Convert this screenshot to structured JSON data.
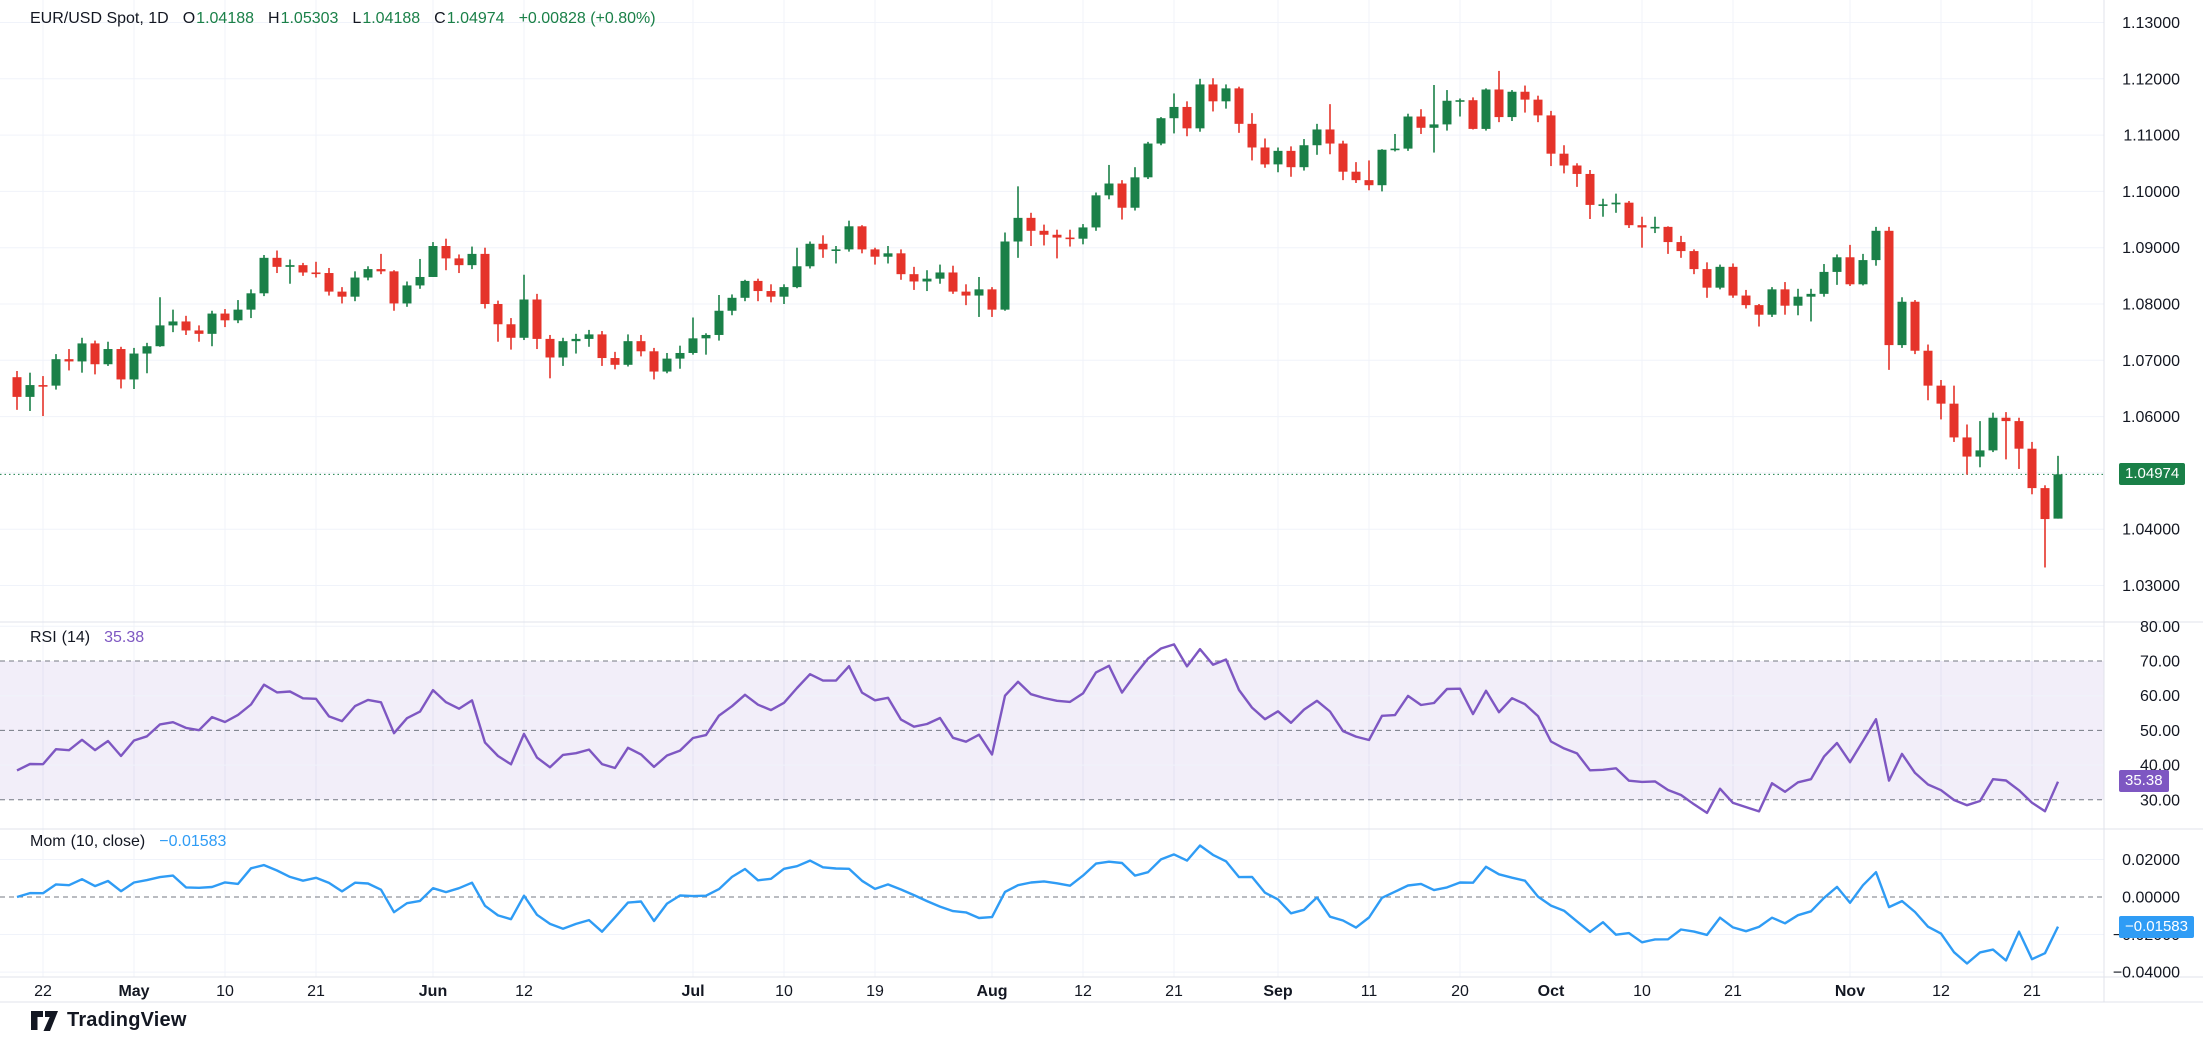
{
  "header": {
    "symbol": "EUR/USD Spot, 1D",
    "o_label": "O",
    "o": "1.04188",
    "h_label": "H",
    "h": "1.05303",
    "l_label": "L",
    "l": "1.04188",
    "c_label": "C",
    "c": "1.04974",
    "change": "+0.00828 (+0.80%)"
  },
  "rsi_header": {
    "name": "RSI",
    "params": "(14)",
    "value": "35.38"
  },
  "mom_header": {
    "name": "Mom",
    "params": "(10, close)",
    "value": "−0.01583"
  },
  "badges": {
    "price": "1.04974",
    "rsi": "35.38",
    "mom": "−0.01583"
  },
  "footer": {
    "brand": "TradingView"
  },
  "colors": {
    "up": "#1a8048",
    "down": "#e5332a",
    "rsi_line": "#7e57c2",
    "rsi_band": "rgba(126,87,194,0.10)",
    "mom_line": "#2f9cf5",
    "grid": "#f0f3fa",
    "dashed": "#757983",
    "separator": "#e0e3eb",
    "text": "#131722",
    "last_close_line": "#1a8048"
  },
  "chart_data": {
    "type": "candlestick+indicators",
    "symbol": "EUR/USD Spot",
    "interval": "1D",
    "price_axis": {
      "min": 1.03,
      "max": 1.13,
      "labels": [
        {
          "t": "1.13000",
          "v": 1.13
        },
        {
          "t": "1.12000",
          "v": 1.12
        },
        {
          "t": "1.11000",
          "v": 1.11
        },
        {
          "t": "1.10000",
          "v": 1.1
        },
        {
          "t": "1.09000",
          "v": 1.09
        },
        {
          "t": "1.08000",
          "v": 1.08
        },
        {
          "t": "1.07000",
          "v": 1.07
        },
        {
          "t": "1.06000",
          "v": 1.06
        },
        {
          "t": "1.04000",
          "v": 1.04
        },
        {
          "t": "1.03000",
          "v": 1.03
        }
      ]
    },
    "rsi_axis": {
      "labels": [
        {
          "t": "80.00",
          "v": 80
        },
        {
          "t": "70.00",
          "v": 70
        },
        {
          "t": "60.00",
          "v": 60
        },
        {
          "t": "50.00",
          "v": 50
        },
        {
          "t": "40.00",
          "v": 40
        },
        {
          "t": "30.00",
          "v": 30
        }
      ],
      "dashed_levels": [
        70,
        50,
        30
      ],
      "faint_levels": [
        80,
        60,
        40
      ],
      "band": [
        30,
        70
      ],
      "period": 14
    },
    "mom_axis": {
      "labels": [
        {
          "t": "0.02000",
          "v": 0.02
        },
        {
          "t": "0.00000",
          "v": 0
        },
        {
          "t": "−0.02000",
          "v": -0.02
        },
        {
          "t": "−0.04000",
          "v": -0.04
        }
      ],
      "dashed_levels": [
        0
      ],
      "faint_levels": [
        0.02,
        -0.02,
        -0.04
      ],
      "period": 10
    },
    "time_ticks": [
      {
        "i": 2,
        "t": "22"
      },
      {
        "i": 9,
        "t": "May",
        "b": 1
      },
      {
        "i": 16,
        "t": "10"
      },
      {
        "i": 23,
        "t": "21"
      },
      {
        "i": 32,
        "t": "Jun",
        "b": 1
      },
      {
        "i": 39,
        "t": "12"
      },
      {
        "i": 52,
        "t": "Jul",
        "b": 1
      },
      {
        "i": 59,
        "t": "10"
      },
      {
        "i": 66,
        "t": "19"
      },
      {
        "i": 75,
        "t": "Aug",
        "b": 1
      },
      {
        "i": 82,
        "t": "12"
      },
      {
        "i": 89,
        "t": "21"
      },
      {
        "i": 97,
        "t": "Sep",
        "b": 1
      },
      {
        "i": 104,
        "t": "11"
      },
      {
        "i": 111,
        "t": "20"
      },
      {
        "i": 118,
        "t": "Oct",
        "b": 1
      },
      {
        "i": 125,
        "t": "10"
      },
      {
        "i": 132,
        "t": "21"
      },
      {
        "i": 141,
        "t": "Nov",
        "b": 1
      },
      {
        "i": 148,
        "t": "12"
      },
      {
        "i": 155,
        "t": "21"
      }
    ],
    "last_close": 1.04974,
    "candles": [
      [
        1.067,
        1.0681,
        1.0612,
        1.0635
      ],
      [
        1.0635,
        1.0678,
        1.061,
        1.0656
      ],
      [
        1.0656,
        1.0672,
        1.0601,
        1.0655
      ],
      [
        1.0655,
        1.0711,
        1.0648,
        1.0702
      ],
      [
        1.0702,
        1.072,
        1.0682,
        1.0698
      ],
      [
        1.0698,
        1.074,
        1.0678,
        1.073
      ],
      [
        1.073,
        1.0735,
        1.0675,
        1.0693
      ],
      [
        1.0693,
        1.0733,
        1.069,
        1.072
      ],
      [
        1.072,
        1.0724,
        1.065,
        1.0666
      ],
      [
        1.0666,
        1.0722,
        1.0649,
        1.0712
      ],
      [
        1.0712,
        1.0731,
        1.0677,
        1.0725
      ],
      [
        1.0725,
        1.0812,
        1.0724,
        1.0762
      ],
      [
        1.0762,
        1.079,
        1.075,
        1.0769
      ],
      [
        1.0769,
        1.0779,
        1.0745,
        1.0753
      ],
      [
        1.0753,
        1.0762,
        1.0733,
        1.0747
      ],
      [
        1.0747,
        1.0788,
        1.0725,
        1.0783
      ],
      [
        1.0783,
        1.0791,
        1.0759,
        1.0771
      ],
      [
        1.0771,
        1.0807,
        1.0766,
        1.079
      ],
      [
        1.079,
        1.0826,
        1.0775,
        1.0819
      ],
      [
        1.0819,
        1.0887,
        1.0814,
        1.0882
      ],
      [
        1.0882,
        1.0895,
        1.0855,
        1.0866
      ],
      [
        1.0866,
        1.0879,
        1.0836,
        1.0869
      ],
      [
        1.0869,
        1.0873,
        1.085,
        1.0856
      ],
      [
        1.0856,
        1.0875,
        1.0847,
        1.0855
      ],
      [
        1.0855,
        1.0864,
        1.0815,
        1.0822
      ],
      [
        1.0822,
        1.083,
        1.0801,
        1.0813
      ],
      [
        1.0813,
        1.0858,
        1.0805,
        1.0847
      ],
      [
        1.0847,
        1.0867,
        1.0842,
        1.0862
      ],
      [
        1.0862,
        1.0889,
        1.0853,
        1.0858
      ],
      [
        1.0858,
        1.086,
        1.0788,
        1.0801
      ],
      [
        1.0801,
        1.084,
        1.0795,
        1.0833
      ],
      [
        1.0833,
        1.088,
        1.0827,
        1.0848
      ],
      [
        1.0848,
        1.091,
        1.0848,
        1.0903
      ],
      [
        1.0903,
        1.0916,
        1.086,
        1.0881
      ],
      [
        1.0881,
        1.0888,
        1.0855,
        1.0869
      ],
      [
        1.0869,
        1.0902,
        1.0862,
        1.0889
      ],
      [
        1.0889,
        1.09,
        1.0792,
        1.08
      ],
      [
        1.08,
        1.0806,
        1.0733,
        1.0764
      ],
      [
        1.0764,
        1.0775,
        1.0719,
        1.074
      ],
      [
        1.074,
        1.0852,
        1.0736,
        1.0808
      ],
      [
        1.0808,
        1.0818,
        1.072,
        1.0738
      ],
      [
        1.0738,
        1.0745,
        1.0668,
        1.0705
      ],
      [
        1.0705,
        1.074,
        1.069,
        1.0734
      ],
      [
        1.0734,
        1.0747,
        1.0712,
        1.0738
      ],
      [
        1.0738,
        1.0754,
        1.0724,
        1.0746
      ],
      [
        1.0746,
        1.0752,
        1.069,
        1.0704
      ],
      [
        1.0704,
        1.0715,
        1.0684,
        1.0692
      ],
      [
        1.0692,
        1.0746,
        1.0689,
        1.0734
      ],
      [
        1.0734,
        1.0745,
        1.0707,
        1.0716
      ],
      [
        1.0716,
        1.0722,
        1.0666,
        1.068
      ],
      [
        1.068,
        1.0713,
        1.0677,
        1.0703
      ],
      [
        1.0703,
        1.0726,
        1.0685,
        1.0713
      ],
      [
        1.0713,
        1.0776,
        1.071,
        1.0739
      ],
      [
        1.0739,
        1.0748,
        1.071,
        1.0745
      ],
      [
        1.0745,
        1.0816,
        1.0735,
        1.0788
      ],
      [
        1.0788,
        1.0817,
        1.078,
        1.0811
      ],
      [
        1.0811,
        1.0843,
        1.0805,
        1.0841
      ],
      [
        1.0841,
        1.0845,
        1.0805,
        1.0823
      ],
      [
        1.0823,
        1.0835,
        1.0803,
        1.0813
      ],
      [
        1.0813,
        1.0835,
        1.08,
        1.083
      ],
      [
        1.083,
        1.09,
        1.0828,
        1.0867
      ],
      [
        1.0867,
        1.0911,
        1.0863,
        1.0907
      ],
      [
        1.0907,
        1.0922,
        1.0882,
        1.0897
      ],
      [
        1.0897,
        1.0903,
        1.0872,
        1.0897
      ],
      [
        1.0897,
        1.0948,
        1.0893,
        1.0938
      ],
      [
        1.0938,
        1.094,
        1.089,
        1.0897
      ],
      [
        1.0897,
        1.09,
        1.087,
        1.0884
      ],
      [
        1.0884,
        1.0903,
        1.0872,
        1.089
      ],
      [
        1.089,
        1.0897,
        1.0843,
        1.0853
      ],
      [
        1.0853,
        1.0866,
        1.0825,
        1.084
      ],
      [
        1.084,
        1.086,
        1.0823,
        1.0845
      ],
      [
        1.0845,
        1.087,
        1.0836,
        1.0856
      ],
      [
        1.0856,
        1.0868,
        1.0818,
        1.0822
      ],
      [
        1.0822,
        1.0835,
        1.0798,
        1.0815
      ],
      [
        1.0815,
        1.0848,
        1.0777,
        1.0826
      ],
      [
        1.0826,
        1.083,
        1.0777,
        1.079
      ],
      [
        1.079,
        1.0927,
        1.0788,
        1.0911
      ],
      [
        1.0911,
        1.1009,
        1.0882,
        1.0953
      ],
      [
        1.0953,
        1.0962,
        1.0903,
        1.093
      ],
      [
        1.093,
        1.0941,
        1.0904,
        1.0923
      ],
      [
        1.0923,
        1.0932,
        1.0881,
        1.0918
      ],
      [
        1.0918,
        1.0932,
        1.0902,
        1.0916
      ],
      [
        1.0916,
        1.0942,
        1.0906,
        1.0936
      ],
      [
        1.0936,
        1.0998,
        1.093,
        1.0993
      ],
      [
        1.0993,
        1.1047,
        1.0986,
        1.1014
      ],
      [
        1.1014,
        1.102,
        1.095,
        1.0971
      ],
      [
        1.0971,
        1.1043,
        1.0966,
        1.1025
      ],
      [
        1.1025,
        1.1088,
        1.1022,
        1.1085
      ],
      [
        1.1085,
        1.1132,
        1.1082,
        1.113
      ],
      [
        1.113,
        1.1174,
        1.1103,
        1.115
      ],
      [
        1.115,
        1.116,
        1.1098,
        1.1112
      ],
      [
        1.1112,
        1.12,
        1.1106,
        1.119
      ],
      [
        1.119,
        1.1201,
        1.1142,
        1.116
      ],
      [
        1.116,
        1.119,
        1.1147,
        1.1183
      ],
      [
        1.1183,
        1.1186,
        1.1104,
        1.112
      ],
      [
        1.112,
        1.1139,
        1.1055,
        1.1078
      ],
      [
        1.1078,
        1.1094,
        1.1042,
        1.1048
      ],
      [
        1.1048,
        1.1078,
        1.1034,
        1.1072
      ],
      [
        1.1072,
        1.108,
        1.1026,
        1.1043
      ],
      [
        1.1043,
        1.1093,
        1.1037,
        1.1082
      ],
      [
        1.1082,
        1.112,
        1.1065,
        1.111
      ],
      [
        1.111,
        1.1155,
        1.1066,
        1.1085
      ],
      [
        1.1085,
        1.109,
        1.102,
        1.1035
      ],
      [
        1.1035,
        1.1052,
        1.1015,
        1.102
      ],
      [
        1.102,
        1.1055,
        1.1002,
        1.1011
      ],
      [
        1.1011,
        1.1075,
        1.1,
        1.1074
      ],
      [
        1.1074,
        1.1102,
        1.1071,
        1.1076
      ],
      [
        1.1076,
        1.1138,
        1.1072,
        1.1133
      ],
      [
        1.1133,
        1.1146,
        1.1102,
        1.1113
      ],
      [
        1.1113,
        1.1189,
        1.1069,
        1.1119
      ],
      [
        1.1119,
        1.118,
        1.1108,
        1.1161
      ],
      [
        1.1161,
        1.1165,
        1.1133,
        1.1162
      ],
      [
        1.1162,
        1.1167,
        1.111,
        1.1111
      ],
      [
        1.1111,
        1.1183,
        1.1108,
        1.1181
      ],
      [
        1.1181,
        1.1214,
        1.1123,
        1.1132
      ],
      [
        1.1132,
        1.118,
        1.1125,
        1.1177
      ],
      [
        1.1177,
        1.1188,
        1.114,
        1.1163
      ],
      [
        1.1163,
        1.117,
        1.1123,
        1.1135
      ],
      [
        1.1135,
        1.1143,
        1.1045,
        1.1067
      ],
      [
        1.1067,
        1.1082,
        1.1032,
        1.1046
      ],
      [
        1.1046,
        1.105,
        1.1008,
        1.1031
      ],
      [
        1.1031,
        1.1038,
        1.0951,
        1.0976
      ],
      [
        1.0976,
        1.0987,
        1.0955,
        1.0977
      ],
      [
        1.0977,
        1.0996,
        1.0962,
        1.098
      ],
      [
        1.098,
        1.0983,
        1.0935,
        1.094
      ],
      [
        1.094,
        1.0955,
        1.09,
        1.0936
      ],
      [
        1.0936,
        1.0955,
        1.0926,
        1.0937
      ],
      [
        1.0937,
        1.0938,
        1.0889,
        1.091
      ],
      [
        1.091,
        1.0921,
        1.0882,
        1.0894
      ],
      [
        1.0894,
        1.0897,
        1.0853,
        1.0862
      ],
      [
        1.0862,
        1.0874,
        1.0811,
        1.0829
      ],
      [
        1.0829,
        1.087,
        1.0826,
        1.0866
      ],
      [
        1.0866,
        1.0872,
        1.0811,
        1.0815
      ],
      [
        1.0815,
        1.0825,
        1.0792,
        1.0798
      ],
      [
        1.0798,
        1.08,
        1.076,
        1.0781
      ],
      [
        1.0781,
        1.083,
        1.0777,
        1.0826
      ],
      [
        1.0826,
        1.0839,
        1.0781,
        1.0797
      ],
      [
        1.0797,
        1.0827,
        1.078,
        1.0813
      ],
      [
        1.0813,
        1.0827,
        1.0769,
        1.0818
      ],
      [
        1.0818,
        1.0871,
        1.0813,
        1.0857
      ],
      [
        1.0857,
        1.0888,
        1.0834,
        1.0883
      ],
      [
        1.0883,
        1.0905,
        1.0832,
        1.0835
      ],
      [
        1.0835,
        1.0889,
        1.0833,
        1.0878
      ],
      [
        1.0878,
        1.0937,
        1.0868,
        1.093
      ],
      [
        1.093,
        1.0937,
        1.0683,
        1.0727
      ],
      [
        1.0727,
        1.0812,
        1.0722,
        1.0804
      ],
      [
        1.0804,
        1.0807,
        1.0711,
        1.0717
      ],
      [
        1.0717,
        1.0728,
        1.0629,
        1.0655
      ],
      [
        1.0655,
        1.0665,
        1.0595,
        1.0623
      ],
      [
        1.0623,
        1.0655,
        1.0555,
        1.0563
      ],
      [
        1.0563,
        1.0586,
        1.0497,
        1.0529
      ],
      [
        1.0529,
        1.0592,
        1.051,
        1.054
      ],
      [
        1.054,
        1.0607,
        1.0537,
        1.0598
      ],
      [
        1.0598,
        1.0608,
        1.0524,
        1.0592
      ],
      [
        1.0592,
        1.0598,
        1.0507,
        1.0543
      ],
      [
        1.0543,
        1.0555,
        1.0462,
        1.0473
      ],
      [
        1.0473,
        1.0478,
        1.0332,
        1.0418
      ],
      [
        1.04188,
        1.05303,
        1.04188,
        1.04974
      ]
    ]
  }
}
